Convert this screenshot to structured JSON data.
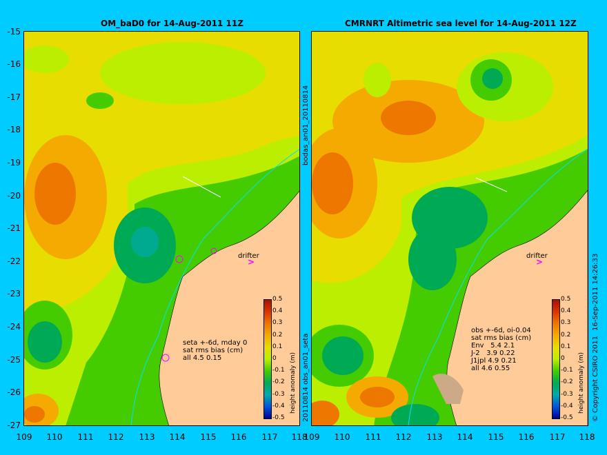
{
  "left_panel": {
    "title": "OM_baD0 for 14-Aug-2011 11Z",
    "side_label_top": "bodas_an01_20110814",
    "side_label_bottom": "20110814 obs_an01_seta",
    "annotation": "seta +-6d, mday 0\nsat rms bias (cm)\nall 4.5 0.15",
    "drifter_label": "drifter"
  },
  "right_panel": {
    "title": "CMRNRT Altimetric sea level  for 14-Aug-2011 12Z",
    "side_label": "16-Sep-2011 14:26:33",
    "copyright": "© Copyright CSIRO 2011",
    "annotation": "obs +-6d, oi-0.04\nsat rms bias (cm)\nEnv   5.4 2.1\nJ-2   3.9 0.22\nJ1jpl 4.9 0.21\nall 4.6 0.55",
    "drifter_label": "drifter"
  },
  "colorbar": {
    "unit_label": "height anomaly (m)",
    "ticks": [
      "0.5",
      "0.4",
      "0.3",
      "0.2",
      "0.1",
      "0",
      "-0.1",
      "-0.2",
      "-0.3",
      "-0.4",
      "-0.5"
    ],
    "colors": [
      "#aa1100",
      "#dd3300",
      "#ee7700",
      "#f4aa00",
      "#e8dd00",
      "#bbee00",
      "#44cc00",
      "#00aa55",
      "#00aaaa",
      "#0055dd",
      "#000099"
    ]
  },
  "axes": {
    "y_ticks": [
      "-15",
      "-16",
      "-17",
      "-18",
      "-19",
      "-20",
      "-21",
      "-22",
      "-23",
      "-24",
      "-25",
      "-26",
      "-27"
    ],
    "x_ticks": [
      "109",
      "110",
      "111",
      "112",
      "113",
      "114",
      "115",
      "116",
      "117",
      "118"
    ]
  },
  "colors": {
    "background": "#00ccff",
    "land": "#ffcc99",
    "drifter_marker": "#ff00ff"
  }
}
